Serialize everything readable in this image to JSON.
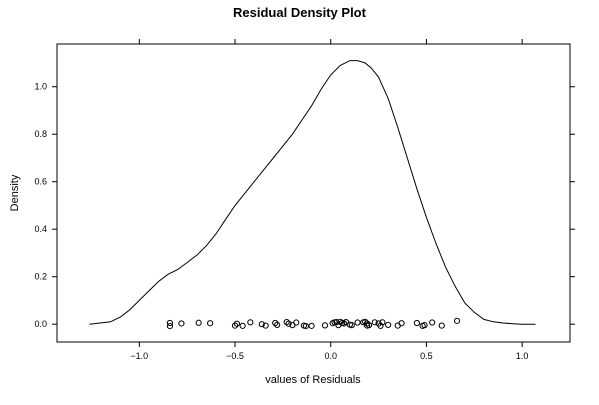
{
  "chart_data": {
    "type": "line",
    "title": "Residual Density Plot",
    "xlabel": "values of Residuals",
    "ylabel": "Density",
    "xlim": [
      -1.43,
      1.25
    ],
    "ylim": [
      -0.075,
      1.18
    ],
    "x_ticks": [
      -1.0,
      -0.5,
      0.0,
      0.5,
      1.0
    ],
    "x_tick_labels": [
      "−1.0",
      "−0.5",
      "0.0",
      "0.5",
      "1.0"
    ],
    "y_ticks": [
      0.0,
      0.2,
      0.4,
      0.6,
      0.8,
      1.0
    ],
    "y_tick_labels": [
      "0.0",
      "0.2",
      "0.4",
      "0.6",
      "0.8",
      "1.0"
    ],
    "grid": false,
    "series": [
      {
        "kind": "density-line",
        "x": [
          -1.26,
          -1.15,
          -1.1,
          -1.05,
          -1.0,
          -0.95,
          -0.9,
          -0.85,
          -0.8,
          -0.75,
          -0.7,
          -0.65,
          -0.6,
          -0.55,
          -0.5,
          -0.45,
          -0.4,
          -0.35,
          -0.3,
          -0.25,
          -0.2,
          -0.15,
          -0.1,
          -0.05,
          0.0,
          0.05,
          0.1,
          0.14,
          0.18,
          0.21,
          0.25,
          0.3,
          0.35,
          0.4,
          0.45,
          0.5,
          0.55,
          0.6,
          0.65,
          0.7,
          0.75,
          0.8,
          0.85,
          0.9,
          0.95,
          1.0,
          1.07
        ],
        "y": [
          0.0,
          0.01,
          0.03,
          0.06,
          0.1,
          0.14,
          0.18,
          0.21,
          0.23,
          0.26,
          0.29,
          0.33,
          0.38,
          0.44,
          0.5,
          0.55,
          0.6,
          0.65,
          0.7,
          0.75,
          0.8,
          0.86,
          0.92,
          0.99,
          1.05,
          1.09,
          1.11,
          1.11,
          1.1,
          1.08,
          1.04,
          0.95,
          0.83,
          0.7,
          0.57,
          0.45,
          0.34,
          0.24,
          0.16,
          0.09,
          0.05,
          0.02,
          0.01,
          0.005,
          0.002,
          0.0,
          0.0
        ]
      },
      {
        "kind": "rug-points",
        "x": [
          -0.84,
          -0.84,
          -0.78,
          -0.69,
          -0.63,
          -0.5,
          -0.49,
          -0.46,
          -0.42,
          -0.36,
          -0.34,
          -0.29,
          -0.28,
          -0.23,
          -0.22,
          -0.2,
          -0.18,
          -0.14,
          -0.13,
          -0.1,
          -0.03,
          0.01,
          0.02,
          0.03,
          0.04,
          0.05,
          0.06,
          0.07,
          0.08,
          0.1,
          0.11,
          0.14,
          0.17,
          0.18,
          0.19,
          0.19,
          0.2,
          0.23,
          0.25,
          0.26,
          0.27,
          0.3,
          0.35,
          0.37,
          0.45,
          0.48,
          0.49,
          0.53,
          0.58,
          0.66
        ],
        "y": [
          0.005,
          -0.008,
          0.003,
          0.006,
          0.004,
          -0.006,
          0.002,
          -0.007,
          0.008,
          0.0,
          -0.006,
          0.005,
          -0.003,
          0.009,
          0.002,
          -0.004,
          0.007,
          -0.006,
          -0.008,
          -0.007,
          -0.005,
          0.004,
          0.008,
          0.009,
          -0.004,
          0.01,
          0.005,
          0.003,
          0.009,
          -0.002,
          -0.004,
          0.007,
          0.008,
          0.01,
          0.003,
          -0.006,
          -0.004,
          0.008,
          0.003,
          -0.007,
          0.008,
          -0.003,
          -0.006,
          0.004,
          0.005,
          -0.007,
          -0.004,
          0.007,
          -0.006,
          0.014
        ]
      }
    ]
  }
}
